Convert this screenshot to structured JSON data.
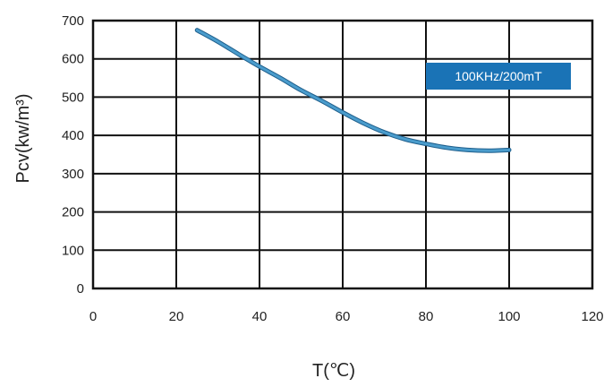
{
  "chart_data": {
    "type": "line",
    "xlabel": "T(℃)",
    "ylabel": "Pcv(kw/m³)",
    "xlim": [
      0,
      120
    ],
    "ylim": [
      0,
      700
    ],
    "x_ticks": [
      0,
      20,
      40,
      60,
      80,
      100,
      120
    ],
    "y_ticks": [
      0,
      100,
      200,
      300,
      400,
      500,
      600,
      700
    ],
    "grid": true,
    "legend_position": "top-right",
    "series": [
      {
        "name": "100KHz/200mT",
        "color": "#4a9ccc",
        "x": [
          25,
          30,
          35,
          40,
          45,
          50,
          55,
          60,
          65,
          70,
          75,
          80,
          85,
          90,
          95,
          100
        ],
        "y": [
          675,
          645,
          612,
          580,
          550,
          518,
          490,
          460,
          432,
          408,
          390,
          378,
          368,
          362,
          360,
          362
        ]
      }
    ]
  }
}
